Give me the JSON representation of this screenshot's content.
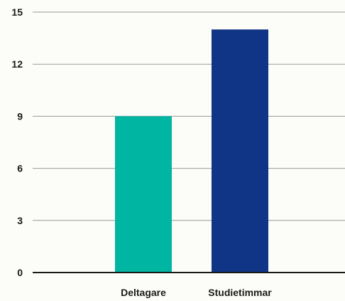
{
  "chart_data": {
    "type": "bar",
    "title": "",
    "xlabel": "",
    "ylabel": "",
    "categories": [
      "Deltagare",
      "Studietimmar"
    ],
    "values": [
      9,
      14
    ],
    "colors": [
      "#00b5a2",
      "#103586"
    ],
    "ylim": [
      0,
      15
    ],
    "yticks": [
      0,
      3,
      6,
      9,
      12,
      15
    ],
    "grid": true,
    "legend": "none"
  },
  "colors": {
    "background": "#fcfcf8",
    "gridline": "#9a9a9a",
    "baseline": "#1a1a1a"
  }
}
